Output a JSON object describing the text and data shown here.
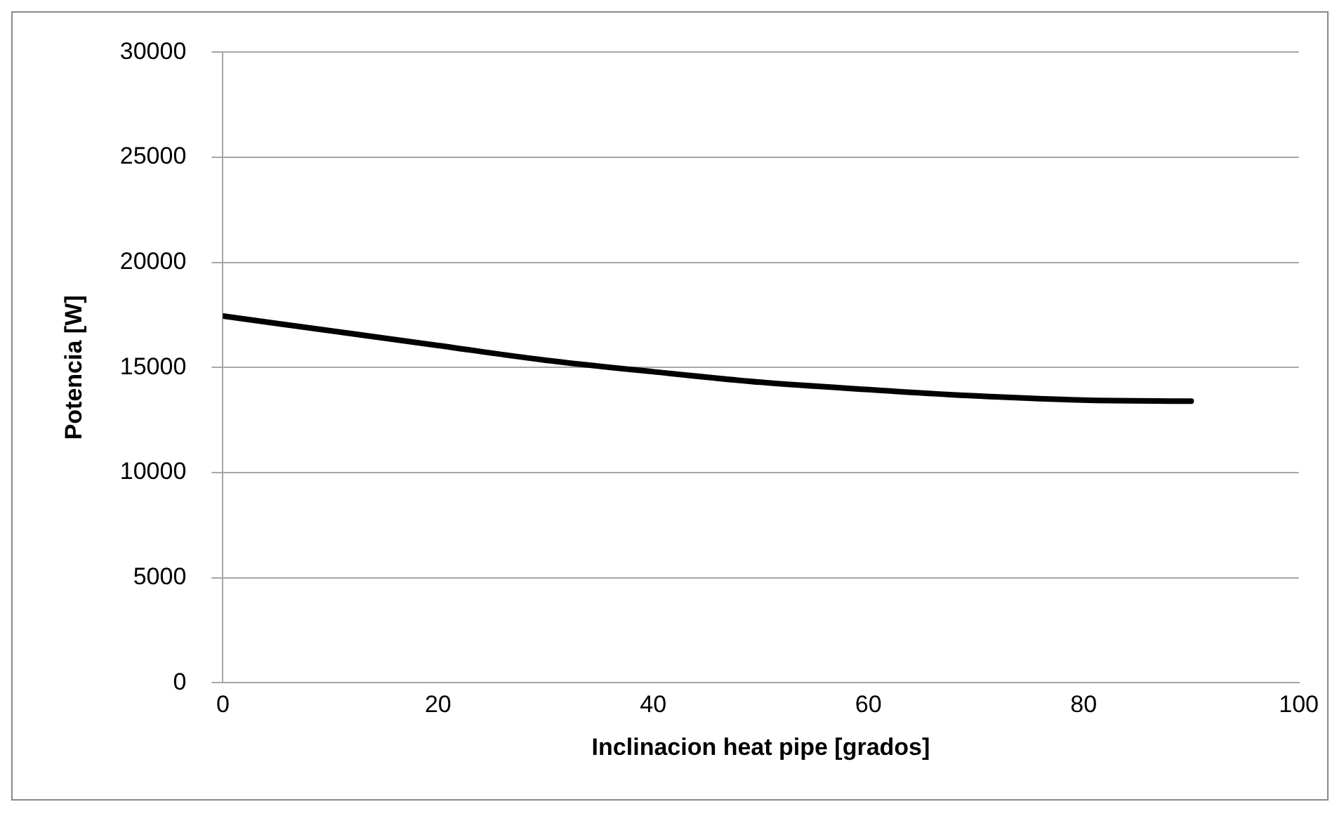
{
  "chart_data": {
    "type": "line",
    "xlabel": "Inclinacion heat pipe [grados]",
    "ylabel": "Potencia [W]",
    "x": [
      0,
      10,
      20,
      30,
      40,
      50,
      60,
      70,
      80,
      90
    ],
    "series": [
      {
        "color": "#000000",
        "values": [
          17450,
          16750,
          16050,
          15350,
          14800,
          14300,
          13950,
          13650,
          13450,
          13400
        ]
      }
    ],
    "xlim": [
      0,
      100
    ],
    "xticks": [
      0,
      20,
      40,
      60,
      80,
      100
    ],
    "ylim": [
      0,
      30000
    ],
    "yticks": [
      0,
      5000,
      10000,
      15000,
      20000,
      25000,
      30000
    ],
    "grid": "y",
    "legend": false,
    "marker": "none",
    "line_style": "solid"
  }
}
